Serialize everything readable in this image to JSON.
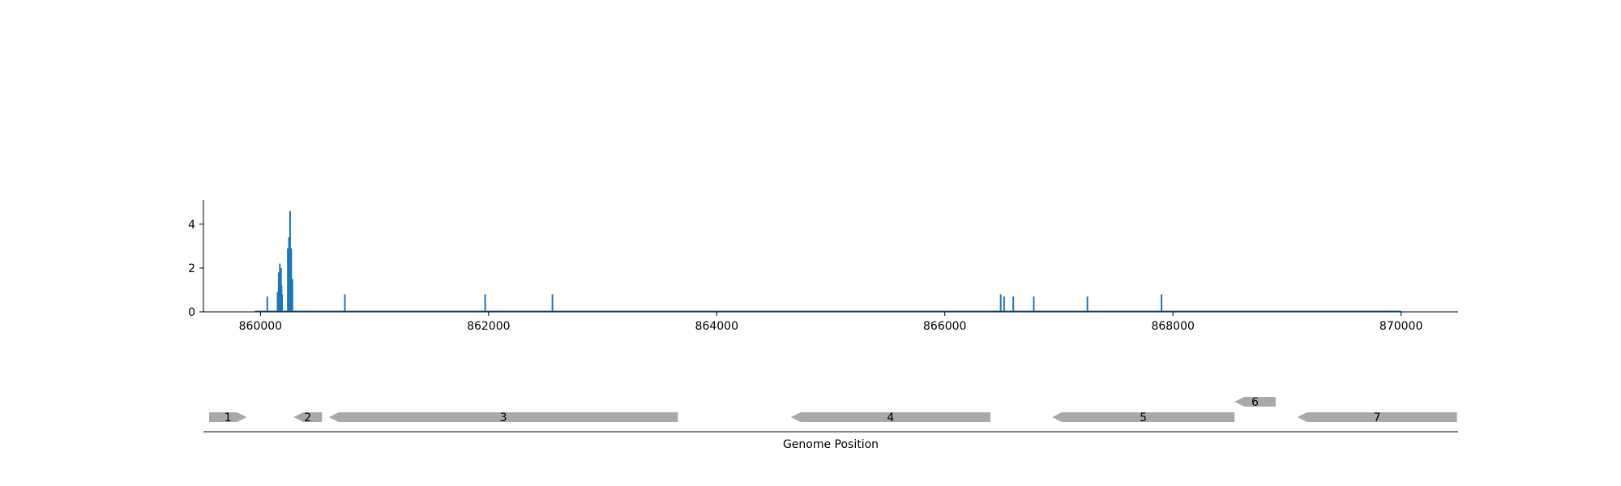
{
  "chart_data": [
    {
      "type": "bar",
      "title": "",
      "xlabel": "",
      "ylabel": "",
      "xlim": [
        859500,
        870500
      ],
      "ylim": [
        0,
        5.1
      ],
      "x_ticks": [
        860000,
        862000,
        864000,
        866000,
        868000,
        870000
      ],
      "y_ticks": [
        0,
        2,
        4
      ],
      "series_color": "#1f77b4",
      "baseline_range": [
        859950,
        870000
      ],
      "x": [
        860060,
        860150,
        860160,
        860170,
        860175,
        860180,
        860185,
        860190,
        860240,
        860250,
        860260,
        860270,
        860280,
        860740,
        861970,
        862560,
        866490,
        866520,
        866600,
        866780,
        867250,
        867900
      ],
      "values": [
        0.7,
        0.9,
        1.8,
        2.2,
        1.5,
        2.0,
        1.2,
        0.8,
        2.9,
        3.4,
        4.6,
        2.9,
        1.5,
        0.8,
        0.8,
        0.8,
        0.8,
        0.7,
        0.7,
        0.7,
        0.7,
        0.8
      ]
    },
    {
      "type": "gene_track",
      "xlabel": "Genome Position",
      "gene_color": "#a9a9a9",
      "genes": [
        {
          "label": "1",
          "start": 859550,
          "end": 859880,
          "strand": "+",
          "row": 0
        },
        {
          "label": "2",
          "start": 860290,
          "end": 860540,
          "strand": "-",
          "row": 0
        },
        {
          "label": "3",
          "start": 860600,
          "end": 863660,
          "strand": "-",
          "row": 0
        },
        {
          "label": "4",
          "start": 864650,
          "end": 866400,
          "strand": "-",
          "row": 0
        },
        {
          "label": "5",
          "start": 866940,
          "end": 868540,
          "strand": "-",
          "row": 0
        },
        {
          "label": "6",
          "start": 868540,
          "end": 868900,
          "strand": "-",
          "row": 1
        },
        {
          "label": "7",
          "start": 869090,
          "end": 870490,
          "strand": "-",
          "row": 0
        }
      ]
    }
  ]
}
